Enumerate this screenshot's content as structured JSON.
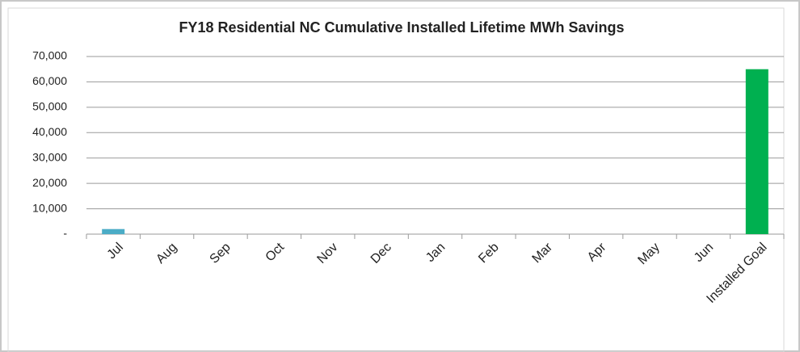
{
  "chart_data": {
    "type": "bar",
    "title": "FY18 Residential NC Cumulative Installed Lifetime MWh Savings",
    "categories": [
      "Jul",
      "Aug",
      "Sep",
      "Oct",
      "Nov",
      "Dec",
      "Jan",
      "Feb",
      "Mar",
      "Apr",
      "May",
      "Jun",
      "Installed Goal"
    ],
    "values": [
      2000,
      null,
      null,
      null,
      null,
      null,
      null,
      null,
      null,
      null,
      null,
      null,
      65000
    ],
    "colors": [
      "#4bacc6",
      "#4bacc6",
      "#4bacc6",
      "#4bacc6",
      "#4bacc6",
      "#4bacc6",
      "#4bacc6",
      "#4bacc6",
      "#4bacc6",
      "#4bacc6",
      "#4bacc6",
      "#4bacc6",
      "#00b050"
    ],
    "ylim": [
      0,
      70000
    ],
    "yticks": [
      {
        "value": 0,
        "label": "-"
      },
      {
        "value": 10000,
        "label": "10,000"
      },
      {
        "value": 20000,
        "label": "20,000"
      },
      {
        "value": 30000,
        "label": "30,000"
      },
      {
        "value": 40000,
        "label": "40,000"
      },
      {
        "value": 50000,
        "label": "50,000"
      },
      {
        "value": 60000,
        "label": "60,000"
      },
      {
        "value": 70000,
        "label": "70,000"
      }
    ],
    "grid": true
  }
}
